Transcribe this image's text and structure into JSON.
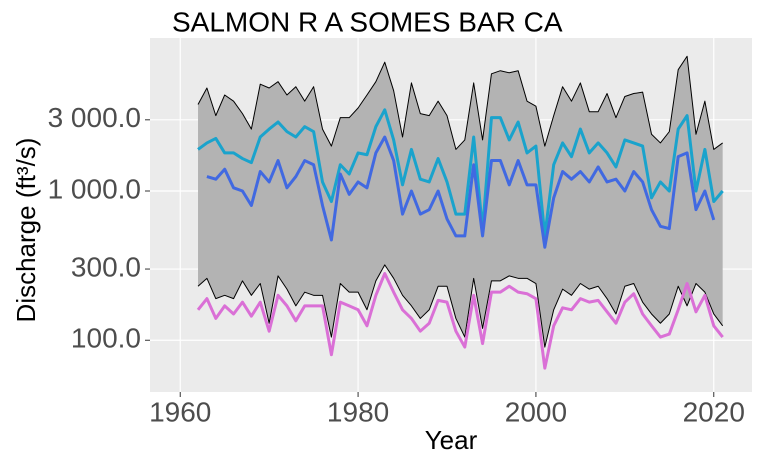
{
  "chart_data": {
    "type": "line",
    "title": "SALMON R A SOMES BAR CA",
    "x_label": "Year",
    "y_label": "Discharge (ft³/s)",
    "log_y": true,
    "grid": true,
    "xlim": [
      1956.6,
      2024.3
    ],
    "xticks": [
      1960,
      1980,
      2000,
      2020
    ],
    "ylim": [
      45,
      10600
    ],
    "yticks": [
      {
        "value": 100,
        "label": "100.0"
      },
      {
        "value": 300,
        "label": "300.0"
      },
      {
        "value": 1000,
        "label": "1 000.0"
      },
      {
        "value": 3000,
        "label": "3 000.0"
      }
    ],
    "x": [
      1962,
      1963,
      1964,
      1965,
      1966,
      1967,
      1968,
      1969,
      1970,
      1971,
      1972,
      1973,
      1974,
      1975,
      1976,
      1977,
      1978,
      1979,
      1980,
      1981,
      1982,
      1983,
      1984,
      1985,
      1986,
      1987,
      1988,
      1989,
      1990,
      1991,
      1992,
      1993,
      1994,
      1995,
      1996,
      1997,
      1998,
      1999,
      2000,
      2001,
      2002,
      2003,
      2004,
      2005,
      2006,
      2007,
      2008,
      2009,
      2010,
      2011,
      2012,
      2013,
      2014,
      2015,
      2016,
      2017,
      2018,
      2019,
      2020,
      2021
    ],
    "ribbon": {
      "color": "#b3b3b3",
      "edge_color": "#000000",
      "upper": [
        3800,
        4900,
        3200,
        4400,
        4000,
        3300,
        2600,
        5200,
        4900,
        5400,
        4400,
        5000,
        4000,
        5000,
        2600,
        2000,
        3100,
        3100,
        3600,
        4400,
        5400,
        7300,
        4700,
        2300,
        5300,
        3300,
        3200,
        4000,
        3200,
        1900,
        2200,
        5300,
        2200,
        6100,
        6400,
        6200,
        6400,
        4000,
        3700,
        2000,
        3200,
        5000,
        4000,
        5300,
        3400,
        3400,
        4500,
        3100,
        4300,
        4500,
        4600,
        2400,
        2100,
        2500,
        6500,
        8000,
        2400,
        4000,
        1900,
        2100
      ],
      "lower": [
        230,
        260,
        190,
        200,
        190,
        250,
        200,
        240,
        130,
        270,
        220,
        170,
        210,
        200,
        200,
        105,
        240,
        210,
        210,
        160,
        250,
        320,
        260,
        200,
        170,
        140,
        160,
        230,
        230,
        140,
        105,
        260,
        120,
        250,
        250,
        270,
        260,
        260,
        240,
        90,
        160,
        220,
        200,
        240,
        220,
        230,
        190,
        150,
        230,
        240,
        180,
        150,
        130,
        150,
        230,
        170,
        240,
        210,
        150,
        125
      ]
    },
    "series": [
      {
        "color": "#1aa3cc",
        "values": [
          1900,
          2100,
          2250,
          1800,
          1800,
          1650,
          1550,
          2300,
          2600,
          2900,
          2500,
          2300,
          2700,
          2500,
          1150,
          850,
          1500,
          1300,
          1800,
          1750,
          2700,
          3500,
          2200,
          1100,
          1900,
          1200,
          1150,
          1650,
          1150,
          700,
          700,
          2300,
          550,
          3100,
          3100,
          2200,
          2900,
          1800,
          2000,
          500,
          1500,
          2100,
          1700,
          2600,
          1800,
          2100,
          1800,
          1450,
          2200,
          2100,
          2000,
          900,
          1150,
          1000,
          2600,
          3200,
          1000,
          1900,
          850,
          1000
        ]
      },
      {
        "color": "#4169e1",
        "values": [
          null,
          1250,
          1200,
          1400,
          1050,
          1000,
          800,
          1350,
          1150,
          1600,
          1050,
          1250,
          1600,
          1500,
          800,
          470,
          1300,
          950,
          1150,
          1050,
          1800,
          2300,
          1600,
          700,
          1000,
          700,
          750,
          1000,
          650,
          500,
          500,
          1500,
          500,
          1600,
          1600,
          1100,
          1600,
          1100,
          1100,
          420,
          900,
          1350,
          1200,
          1350,
          1150,
          1450,
          1150,
          1200,
          1000,
          1350,
          1150,
          750,
          580,
          560,
          1700,
          1800,
          750,
          1000,
          640,
          null
        ]
      },
      {
        "color": "#da70d6",
        "values": [
          160,
          190,
          140,
          170,
          150,
          180,
          145,
          180,
          115,
          200,
          170,
          135,
          170,
          170,
          170,
          80,
          180,
          170,
          160,
          125,
          200,
          280,
          210,
          160,
          140,
          115,
          130,
          185,
          180,
          115,
          90,
          200,
          95,
          210,
          210,
          230,
          210,
          205,
          190,
          65,
          125,
          165,
          160,
          190,
          180,
          185,
          155,
          130,
          180,
          205,
          150,
          125,
          105,
          110,
          160,
          240,
          155,
          200,
          125,
          105
        ]
      }
    ]
  }
}
